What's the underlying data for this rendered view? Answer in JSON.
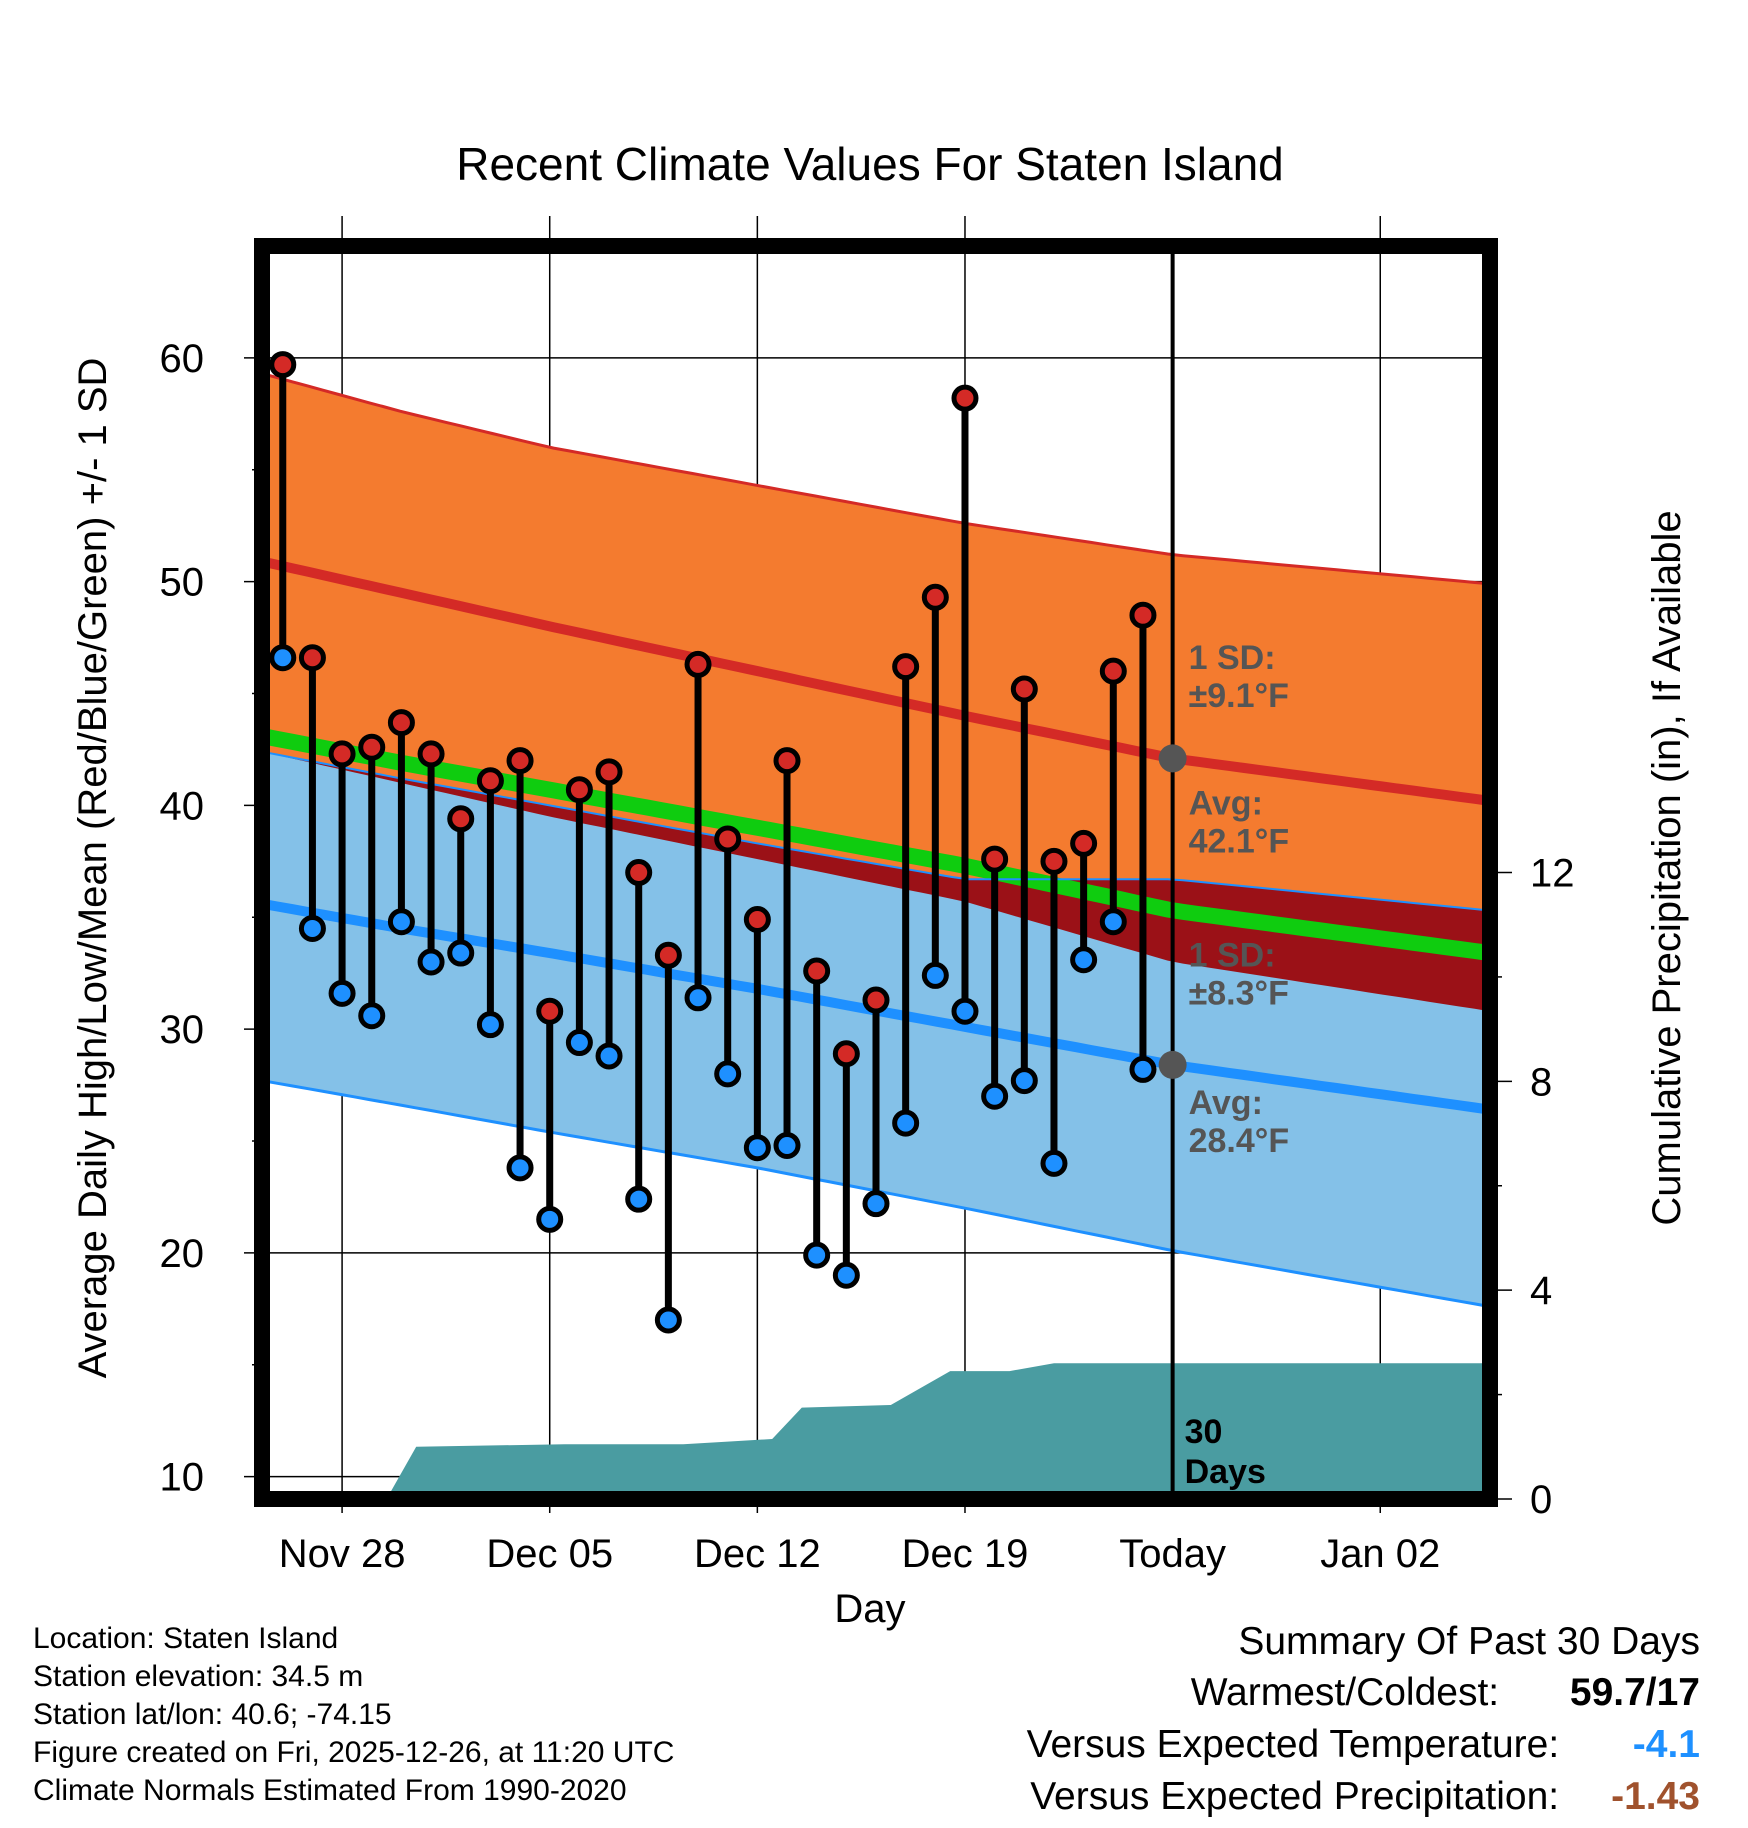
{
  "chart_data": {
    "type": "line",
    "title": "Recent Climate Values For Staten Island",
    "xlabel": "Day",
    "ylabel": "Average Daily High/Low/Mean (Red/Blue/Green) +/- 1 SD",
    "ylabel_right": "Cumulative Precipitation (in), If Available",
    "ylim": [
      9,
      65
    ],
    "ylim_right": [
      0,
      24
    ],
    "xlim": [
      -2.7,
      38.7
    ],
    "y_ticks": [
      10,
      20,
      30,
      40,
      50,
      60
    ],
    "y_right_ticks": [
      0,
      4,
      8,
      12
    ],
    "x_tick_positions": [
      0,
      7,
      14,
      21,
      28,
      35
    ],
    "x_tick_labels": [
      "Nov 28",
      "Dec 05",
      "Dec 12",
      "Dec 19",
      "Today",
      "Jan 02"
    ],
    "today_index": 28,
    "normals": {
      "x": [
        -2.7,
        2,
        7,
        14,
        21,
        28,
        38.7
      ],
      "high_avg": [
        50.9,
        49.5,
        48.0,
        46.0,
        44.0,
        42.1,
        40.2
      ],
      "high_upper": [
        59.3,
        57.6,
        56.0,
        54.3,
        52.6,
        51.2,
        49.9
      ],
      "high_lower": [
        42.4,
        41.0,
        39.5,
        37.6,
        35.7,
        33.0,
        30.8
      ],
      "low_avg": [
        35.6,
        34.5,
        33.4,
        31.8,
        30.1,
        28.4,
        26.4
      ],
      "low_upper": [
        42.4,
        41.2,
        40.0,
        38.3,
        36.7,
        36.7,
        35.3
      ],
      "low_lower": [
        27.7,
        26.6,
        25.4,
        23.8,
        22.0,
        20.1,
        17.6
      ],
      "mean_avg": [
        43.1,
        41.9,
        40.7,
        39.0,
        37.3,
        35.3,
        33.4
      ]
    },
    "daily": {
      "x": [
        -2,
        -1,
        0,
        1,
        2,
        3,
        4,
        5,
        6,
        7,
        8,
        9,
        10,
        11,
        12,
        13,
        14,
        15,
        16,
        17,
        18,
        19,
        20,
        21,
        22,
        23,
        24,
        25,
        26,
        27
      ],
      "high": [
        59.7,
        46.6,
        42.3,
        42.6,
        43.7,
        42.3,
        39.4,
        41.1,
        42.0,
        30.8,
        40.7,
        41.5,
        37.0,
        33.3,
        46.3,
        38.5,
        34.9,
        42.0,
        32.6,
        28.9,
        31.3,
        46.2,
        49.3,
        58.2,
        37.6,
        45.2,
        37.5,
        38.3,
        46.0,
        48.5
      ],
      "low": [
        46.6,
        34.5,
        31.6,
        30.6,
        34.8,
        33.0,
        33.4,
        30.2,
        23.8,
        21.5,
        29.4,
        28.8,
        22.4,
        17.0,
        31.4,
        28.0,
        24.7,
        24.8,
        19.9,
        19.0,
        22.2,
        25.8,
        32.4,
        30.8,
        27.0,
        27.7,
        24.0,
        33.1,
        34.8,
        28.2
      ]
    },
    "precipitation": {
      "x": [
        -2.7,
        1.5,
        2.5,
        7.5,
        11.5,
        13,
        14.5,
        15.5,
        18.5,
        20.5,
        21,
        22.5,
        24,
        38.7
      ],
      "values": [
        0,
        0,
        1.0,
        1.05,
        1.05,
        1.1,
        1.15,
        1.75,
        1.8,
        2.45,
        2.45,
        2.45,
        2.6,
        2.6
      ]
    },
    "annotations": {
      "high_sd": [
        "1 SD:",
        "±9.1°F"
      ],
      "high_avg": [
        "Avg:",
        "42.1°F"
      ],
      "low_sd": [
        "1 SD:",
        "±8.3°F"
      ],
      "low_avg": [
        "Avg:",
        "28.4°F"
      ],
      "days": [
        "30",
        "Days"
      ]
    },
    "colors": {
      "high_band": "#f47b2f",
      "high_line": "#d42a26",
      "low_band": "#84c1e8",
      "low_line": "#1e90ff",
      "mean_band": "#9b1117",
      "mean_line": "#0fcc0f",
      "precip": "#4a9ca1",
      "today_marker": "#555555",
      "high_dot": "#d42a26",
      "low_dot": "#1e90ff"
    }
  },
  "footer": {
    "location": "Location: Staten Island",
    "elevation": "Station elevation: 34.5 m",
    "latlon": "Station lat/lon: 40.6; -74.15",
    "created": "Figure created on Fri, 2025-12-26, at 11:20 UTC",
    "normals": "Climate Normals Estimated From 1990-2020"
  },
  "summary": {
    "title": "Summary Of Past 30 Days",
    "warmest_label": "Warmest/Coldest:",
    "warmest_value": "59.7/17",
    "temp_label": "Versus Expected Temperature:",
    "temp_value": "-4.1",
    "temp_color": "#1e90ff",
    "precip_label": "Versus Expected Precipitation:",
    "precip_value": "-1.43",
    "precip_color": "#a0522d"
  }
}
